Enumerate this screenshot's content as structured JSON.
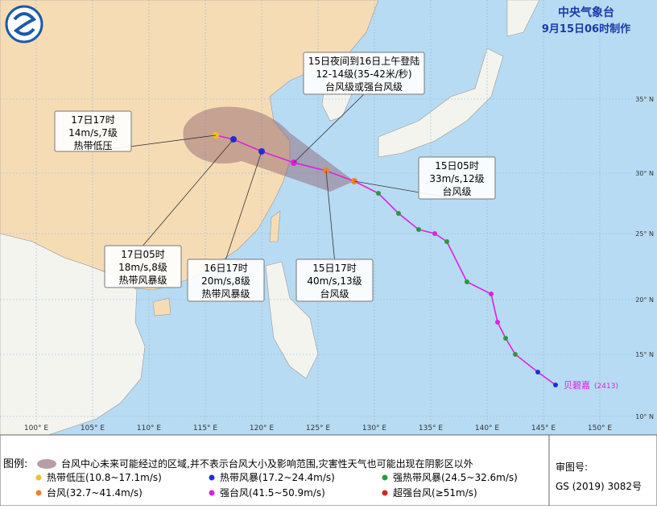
{
  "header": {
    "agency": "中央气象台",
    "issued": "9月15日06时制作"
  },
  "callouts": [
    {
      "lines": [
        "15日夜间到16日上午登陆",
        "12-14级(35-42米/秒)",
        "台风级或强台风级"
      ]
    },
    {
      "lines": [
        "17日17时",
        "14m/s,7级",
        "热带低压"
      ]
    },
    {
      "lines": [
        "15日05时",
        "33m/s,12级",
        "台风级"
      ]
    },
    {
      "lines": [
        "17日05时",
        "18m/s,8级",
        "热带风暴级"
      ]
    },
    {
      "lines": [
        "16日17时",
        "20m/s,8级",
        "热带风暴级"
      ]
    },
    {
      "lines": [
        "15日17时",
        "40m/s,13级",
        "台风级"
      ]
    }
  ],
  "storm": {
    "name": "贝碧嘉",
    "code": "(2413)"
  },
  "axes": {
    "lon_labels": [
      "100° E",
      "105° E",
      "110° E",
      "115° E",
      "120° E",
      "125° E",
      "130° E",
      "135° E",
      "140° E",
      "145° E",
      "150° E"
    ],
    "lat_labels": [
      "10° N",
      "15° N",
      "20° N",
      "25° N",
      "30° N",
      "35° N"
    ]
  },
  "legend": {
    "title": "图例:",
    "cone_note": "台风中心未来可能经过的区域,并不表示台风大小及影响范围,灾害性天气也可能出现在阴影区以外",
    "items": [
      "热带低压(10.8~17.1m/s)",
      "热带风暴(17.2~24.4m/s)",
      "强热带风暴(24.5~32.6m/s)",
      "台风(32.7~41.4m/s)",
      "强台风(41.5~50.9m/s)",
      "超强台风(≥51m/s)"
    ],
    "approval_label": "审图号:",
    "approval_number": "GS (2019) 3082号"
  }
}
